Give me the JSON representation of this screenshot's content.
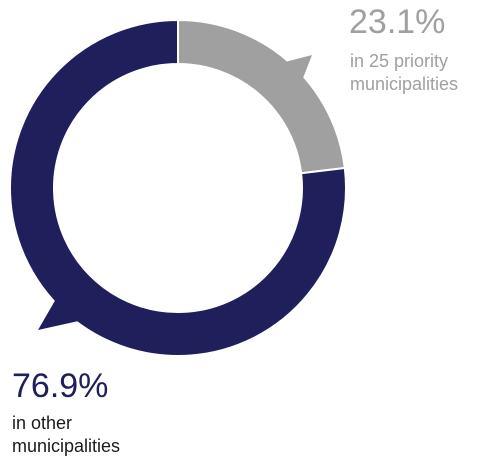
{
  "chart_data": {
    "type": "pie",
    "variant": "donut",
    "title": "",
    "slices": [
      {
        "label": "in 25 priority municipalities",
        "value": 23.1,
        "value_label": "23.1%",
        "label_lines": [
          "in 25 priority",
          "municipalities"
        ],
        "color": "#a0a0a0"
      },
      {
        "label": "in other municipalities",
        "value": 76.9,
        "value_label": "76.9%",
        "label_lines": [
          "in other",
          "municipalities"
        ],
        "color": "#1f1f5c"
      }
    ],
    "legend": "none"
  }
}
